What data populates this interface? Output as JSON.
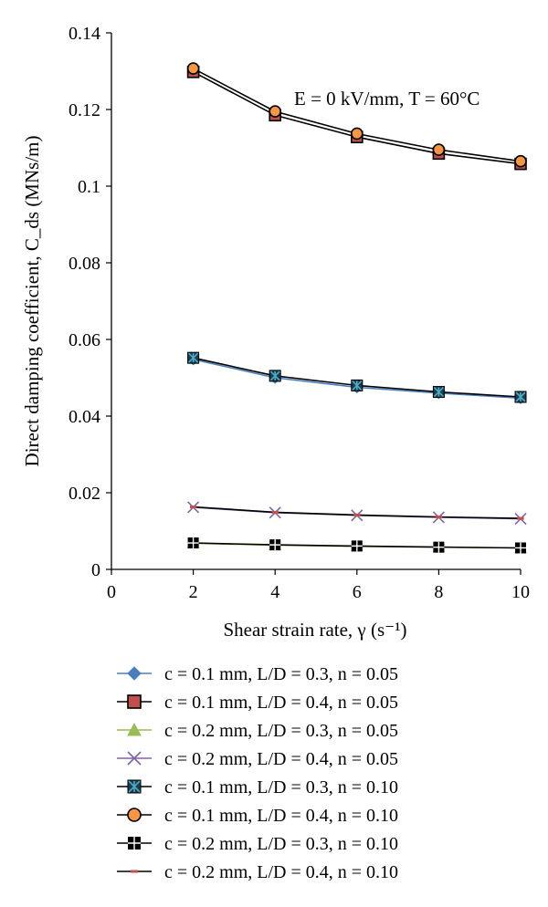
{
  "chart_data": {
    "type": "line",
    "title": "",
    "annotation": "E = 0 kV/mm, T = 60°C",
    "xlabel": "Shear strain rate, γ (s⁻¹)",
    "ylabel": "Direct damping coefficient, C_ds (MNs/m)",
    "xlim": [
      0,
      10
    ],
    "ylim": [
      0,
      0.14
    ],
    "xticks": [
      0,
      2,
      4,
      6,
      8,
      10
    ],
    "yticks": [
      0,
      0.02,
      0.04,
      0.06,
      0.08,
      0.1,
      0.12,
      0.14
    ],
    "x": [
      2,
      4,
      6,
      8,
      10
    ],
    "legend_position": "bottom",
    "series": [
      {
        "name": "c = 0.1 mm, L/D = 0.3, n = 0.05",
        "marker": "diamond",
        "color": "#4a7ebb",
        "line_color": "#4a7ebb",
        "values": [
          0.0548,
          0.05,
          0.0475,
          0.046,
          0.0447
        ]
      },
      {
        "name": "c = 0.1 mm, L/D = 0.4, n = 0.05",
        "marker": "square",
        "color": "#c0504d",
        "line_color": "#000000",
        "values": [
          0.1298,
          0.1185,
          0.1128,
          0.1085,
          0.1058
        ]
      },
      {
        "name": "c = 0.2 mm, L/D = 0.3, n = 0.05",
        "marker": "triangle",
        "color": "#9bbb59",
        "line_color": "#9bbb59",
        "values": [
          0.0068,
          0.0063,
          0.006,
          0.0058,
          0.0056
        ]
      },
      {
        "name": "c = 0.2 mm, L/D = 0.4, n = 0.05",
        "marker": "x",
        "color": "#8064a2",
        "line_color": "#8064a2",
        "values": [
          0.0162,
          0.0148,
          0.0141,
          0.0136,
          0.0132
        ]
      },
      {
        "name": "c = 0.1 mm, L/D = 0.3, n = 0.10",
        "marker": "asterisk-square",
        "color": "#4bacc6",
        "line_color": "#000000",
        "values": [
          0.0552,
          0.0505,
          0.048,
          0.0463,
          0.045
        ]
      },
      {
        "name": "c = 0.1 mm, L/D = 0.4, n = 0.10",
        "marker": "circle",
        "color": "#f79646",
        "line_color": "#000000",
        "values": [
          0.1307,
          0.1195,
          0.1137,
          0.1095,
          0.1065
        ]
      },
      {
        "name": "c = 0.2 mm, L/D = 0.3, n = 0.10",
        "marker": "plus-square",
        "color": "#ffffff",
        "line_color": "#000000",
        "values": [
          0.0069,
          0.0064,
          0.0061,
          0.0058,
          0.0056
        ]
      },
      {
        "name": "c = 0.2 mm, L/D = 0.4, n = 0.10",
        "marker": "dash",
        "color": "#c0504d",
        "line_color": "#000000",
        "values": [
          0.0163,
          0.0149,
          0.0142,
          0.0137,
          0.0133
        ]
      }
    ]
  }
}
